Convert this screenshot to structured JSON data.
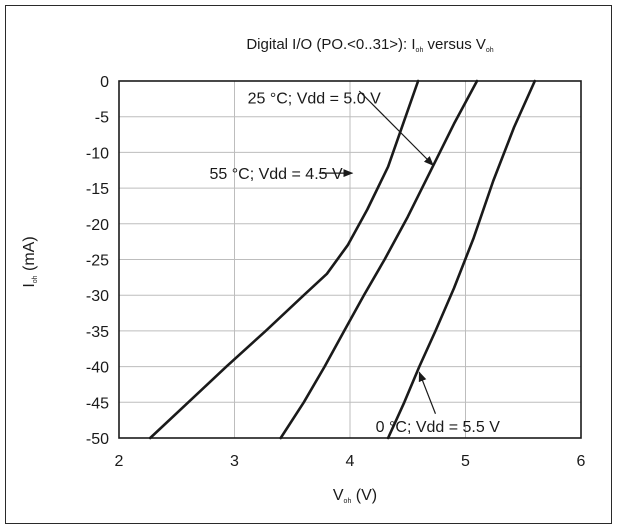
{
  "chart_data": {
    "type": "line",
    "title": {
      "prefix": "Digital I/O (PO.<0..31>): I",
      "sub1": "oh",
      "mid": " versus V",
      "sub2": "oh"
    },
    "xlabel": {
      "main": "V",
      "sub": "oh",
      "unit": " (V)"
    },
    "ylabel": {
      "main": "I",
      "sub": "oh",
      "unit": " (mA)"
    },
    "xlim": [
      2,
      6
    ],
    "ylim": [
      -50,
      0
    ],
    "x_ticks": [
      "2",
      "3",
      "4",
      "5",
      "6"
    ],
    "y_ticks": [
      "0",
      "-5",
      "-10",
      "-15",
      "-20",
      "-25",
      "-30",
      "-35",
      "-40",
      "-45",
      "-50"
    ],
    "x_tick_values": [
      2,
      3,
      4,
      5,
      6
    ],
    "y_tick_values": [
      0,
      -5,
      -10,
      -15,
      -20,
      -25,
      -30,
      -35,
      -40,
      -45,
      -50
    ],
    "grid": true,
    "line_color": "#1a1a1a",
    "grid_color": "#bdbdbd",
    "series": [
      {
        "name": "55 °C; Vdd = 4.5 V",
        "points": [
          [
            2.27,
            -50
          ],
          [
            2.6,
            -45
          ],
          [
            2.93,
            -40
          ],
          [
            3.27,
            -35
          ],
          [
            3.6,
            -30
          ],
          [
            3.8,
            -27
          ],
          [
            3.98,
            -23
          ],
          [
            4.15,
            -18
          ],
          [
            4.33,
            -12
          ],
          [
            4.46,
            -6
          ],
          [
            4.59,
            0
          ]
        ]
      },
      {
        "name": "25 °C; Vdd = 5.0 V",
        "points": [
          [
            3.4,
            -50
          ],
          [
            3.6,
            -45
          ],
          [
            3.78,
            -40
          ],
          [
            3.95,
            -35
          ],
          [
            4.12,
            -30
          ],
          [
            4.3,
            -25
          ],
          [
            4.5,
            -19
          ],
          [
            4.7,
            -12.5
          ],
          [
            4.9,
            -6
          ],
          [
            5.1,
            0
          ]
        ]
      },
      {
        "name": "0 °C; Vdd = 5.5 V",
        "points": [
          [
            4.33,
            -50
          ],
          [
            4.47,
            -45
          ],
          [
            4.6,
            -40
          ],
          [
            4.74,
            -35
          ],
          [
            4.9,
            -29
          ],
          [
            5.07,
            -22
          ],
          [
            5.24,
            -14
          ],
          [
            5.42,
            -6.5
          ],
          [
            5.6,
            0
          ]
        ]
      }
    ],
    "annotations": [
      {
        "label": "25 °C; Vdd = 5.0 V",
        "text_x": 3.69,
        "text_y": -2.3,
        "arrow_from": [
          4.08,
          -1.4
        ],
        "arrow_to": [
          4.72,
          -11.8
        ]
      },
      {
        "label": "55 °C; Vdd = 4.5 V",
        "text_x": 3.36,
        "text_y": -12.9,
        "arrow_from": [
          3.73,
          -12.9
        ],
        "arrow_to": [
          4.02,
          -12.9
        ]
      },
      {
        "label": "0 °C; Vdd = 5.5 V",
        "text_x": 4.76,
        "text_y": -48.3,
        "arrow_from": [
          4.74,
          -46.6
        ],
        "arrow_to": [
          4.6,
          -40.8
        ]
      }
    ]
  }
}
